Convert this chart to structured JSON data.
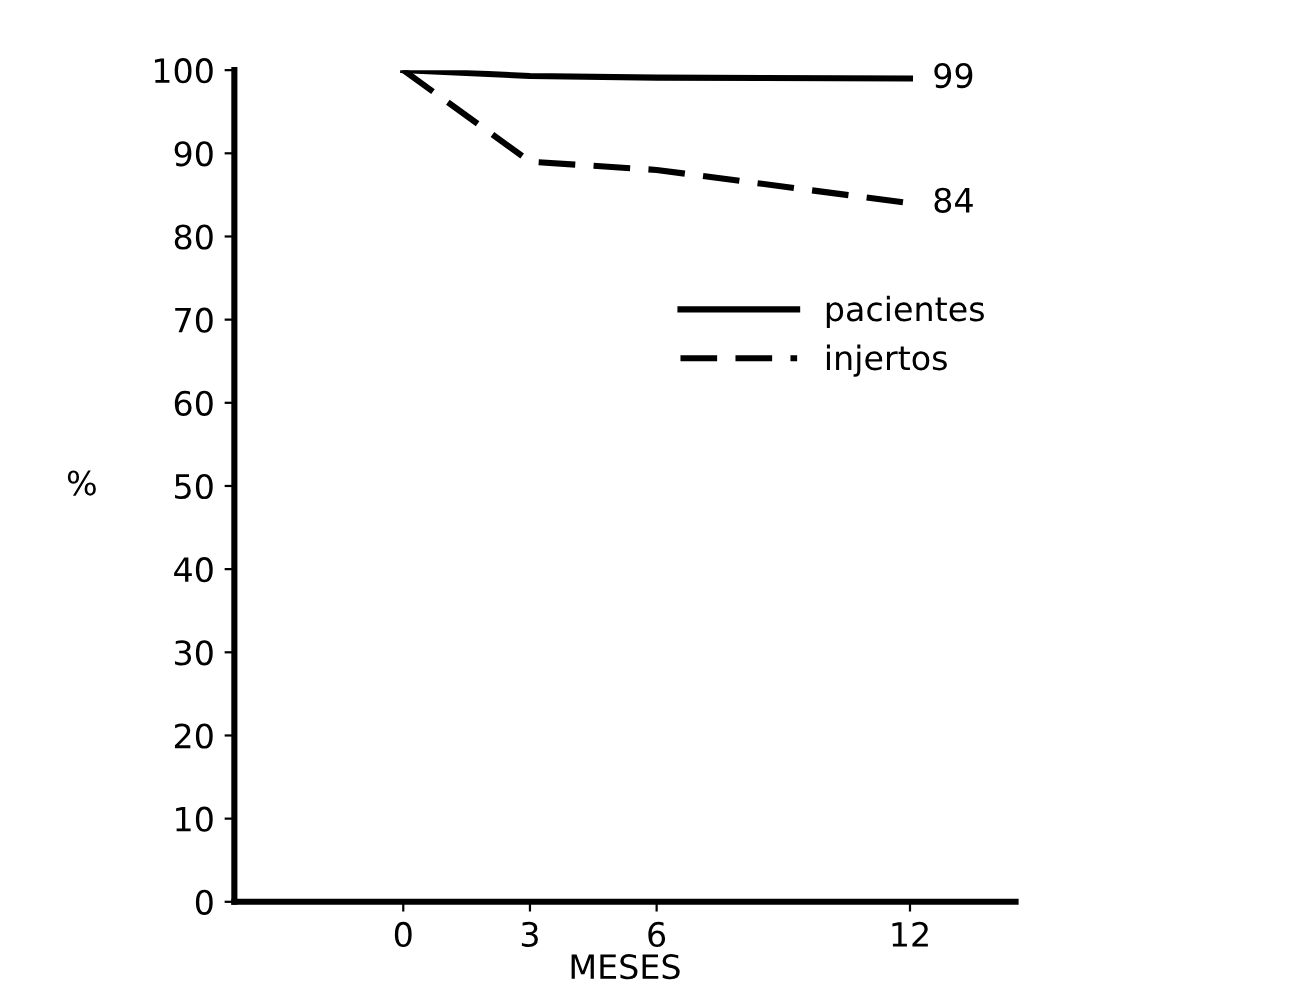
{
  "chart_data": {
    "type": "line",
    "xlabel": "MESES",
    "ylabel": "%",
    "x": [
      0,
      3,
      6,
      12
    ],
    "series": [
      {
        "name": "pacientes",
        "color": "#000000",
        "line_style": "solid",
        "values": [
          100,
          99.3,
          99.1,
          99
        ],
        "value_labels": [
          null,
          null,
          null,
          "99"
        ]
      },
      {
        "name": "injertos",
        "color": "#000000",
        "line_style": "dashed",
        "values": [
          100,
          89,
          88,
          84
        ],
        "value_labels": [
          null,
          null,
          null,
          "84"
        ]
      }
    ],
    "xlim": [
      -4,
      14.5
    ],
    "xticks": [
      0,
      3,
      6,
      12
    ],
    "ylim": [
      0,
      100
    ],
    "yticks": [
      0,
      10,
      20,
      30,
      40,
      50,
      60,
      70,
      80,
      90,
      100
    ],
    "grid": false,
    "legend": "right",
    "marker": "none"
  }
}
